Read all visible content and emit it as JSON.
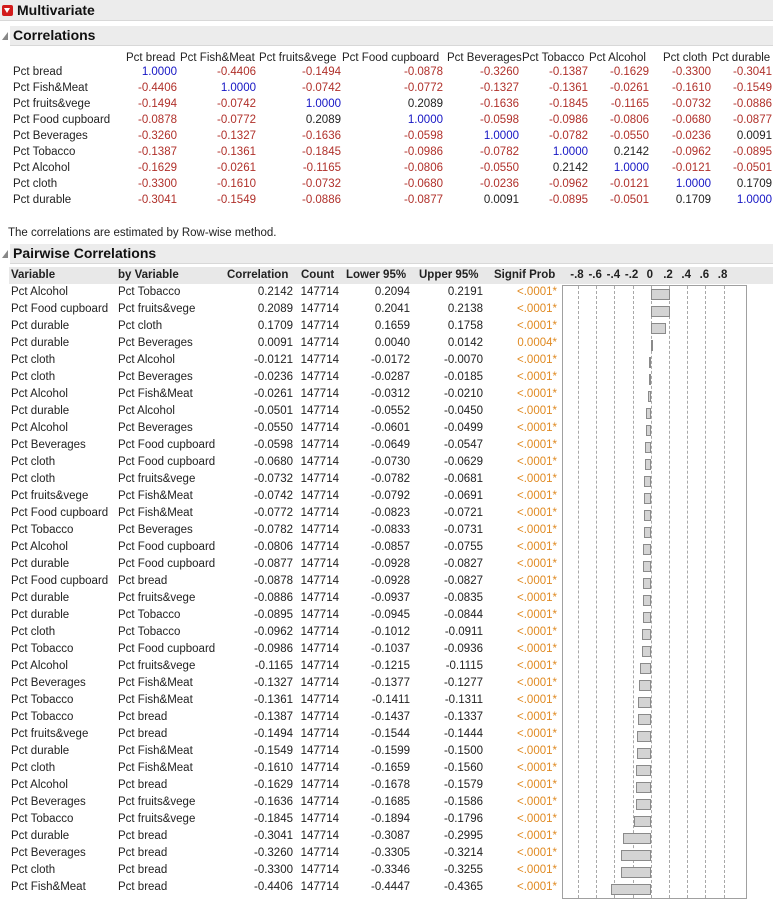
{
  "header": {
    "title": "Multivariate"
  },
  "correlations": {
    "title": "Correlations",
    "variables": [
      "Pct bread",
      "Pct Fish&Meat",
      "Pct fruits&vege",
      "Pct Food cupboard",
      "Pct Beverages",
      "Pct Tobacco",
      "Pct Alcohol",
      "Pct cloth",
      "Pct durable"
    ],
    "matrix": [
      [
        "1.0000",
        "-0.4406",
        "-0.1494",
        "-0.0878",
        "-0.3260",
        "-0.1387",
        "-0.1629",
        "-0.3300",
        "-0.3041"
      ],
      [
        "-0.4406",
        "1.0000",
        "-0.0742",
        "-0.0772",
        "-0.1327",
        "-0.1361",
        "-0.0261",
        "-0.1610",
        "-0.1549"
      ],
      [
        "-0.1494",
        "-0.0742",
        "1.0000",
        "0.2089",
        "-0.1636",
        "-0.1845",
        "-0.1165",
        "-0.0732",
        "-0.0886"
      ],
      [
        "-0.0878",
        "-0.0772",
        "0.2089",
        "1.0000",
        "-0.0598",
        "-0.0986",
        "-0.0806",
        "-0.0680",
        "-0.0877"
      ],
      [
        "-0.3260",
        "-0.1327",
        "-0.1636",
        "-0.0598",
        "1.0000",
        "-0.0782",
        "-0.0550",
        "-0.0236",
        "0.0091"
      ],
      [
        "-0.1387",
        "-0.1361",
        "-0.1845",
        "-0.0986",
        "-0.0782",
        "1.0000",
        "0.2142",
        "-0.0962",
        "-0.0895"
      ],
      [
        "-0.1629",
        "-0.0261",
        "-0.1165",
        "-0.0806",
        "-0.0550",
        "0.2142",
        "1.0000",
        "-0.0121",
        "-0.0501"
      ],
      [
        "-0.3300",
        "-0.1610",
        "-0.0732",
        "-0.0680",
        "-0.0236",
        "-0.0962",
        "-0.0121",
        "1.0000",
        "0.1709"
      ],
      [
        "-0.3041",
        "-0.1549",
        "-0.0886",
        "-0.0877",
        "0.0091",
        "-0.0895",
        "-0.0501",
        "0.1709",
        "1.0000"
      ]
    ],
    "note": "The correlations are estimated by Row-wise method."
  },
  "pairwise": {
    "title": "Pairwise Correlations",
    "columns": [
      "Variable",
      "by Variable",
      "Correlation",
      "Count",
      "Lower 95%",
      "Upper 95%",
      "Signif Prob"
    ],
    "axis_ticks": [
      "-.8",
      "-.6",
      "-.4",
      "-.2",
      "0",
      ".2",
      ".4",
      ".6",
      ".8"
    ],
    "rows": [
      [
        "Pct Alcohol",
        "Pct Tobacco",
        "0.2142",
        "147714",
        "0.2094",
        "0.2191",
        "<.0001*"
      ],
      [
        "Pct Food cupboard",
        "Pct fruits&vege",
        "0.2089",
        "147714",
        "0.2041",
        "0.2138",
        "<.0001*"
      ],
      [
        "Pct durable",
        "Pct cloth",
        "0.1709",
        "147714",
        "0.1659",
        "0.1758",
        "<.0001*"
      ],
      [
        "Pct durable",
        "Pct Beverages",
        "0.0091",
        "147714",
        "0.0040",
        "0.0142",
        "0.0004*"
      ],
      [
        "Pct cloth",
        "Pct Alcohol",
        "-0.0121",
        "147714",
        "-0.0172",
        "-0.0070",
        "<.0001*"
      ],
      [
        "Pct cloth",
        "Pct Beverages",
        "-0.0236",
        "147714",
        "-0.0287",
        "-0.0185",
        "<.0001*"
      ],
      [
        "Pct Alcohol",
        "Pct Fish&Meat",
        "-0.0261",
        "147714",
        "-0.0312",
        "-0.0210",
        "<.0001*"
      ],
      [
        "Pct durable",
        "Pct Alcohol",
        "-0.0501",
        "147714",
        "-0.0552",
        "-0.0450",
        "<.0001*"
      ],
      [
        "Pct Alcohol",
        "Pct Beverages",
        "-0.0550",
        "147714",
        "-0.0601",
        "-0.0499",
        "<.0001*"
      ],
      [
        "Pct Beverages",
        "Pct Food cupboard",
        "-0.0598",
        "147714",
        "-0.0649",
        "-0.0547",
        "<.0001*"
      ],
      [
        "Pct cloth",
        "Pct Food cupboard",
        "-0.0680",
        "147714",
        "-0.0730",
        "-0.0629",
        "<.0001*"
      ],
      [
        "Pct cloth",
        "Pct fruits&vege",
        "-0.0732",
        "147714",
        "-0.0782",
        "-0.0681",
        "<.0001*"
      ],
      [
        "Pct fruits&vege",
        "Pct Fish&Meat",
        "-0.0742",
        "147714",
        "-0.0792",
        "-0.0691",
        "<.0001*"
      ],
      [
        "Pct Food cupboard",
        "Pct Fish&Meat",
        "-0.0772",
        "147714",
        "-0.0823",
        "-0.0721",
        "<.0001*"
      ],
      [
        "Pct Tobacco",
        "Pct Beverages",
        "-0.0782",
        "147714",
        "-0.0833",
        "-0.0731",
        "<.0001*"
      ],
      [
        "Pct Alcohol",
        "Pct Food cupboard",
        "-0.0806",
        "147714",
        "-0.0857",
        "-0.0755",
        "<.0001*"
      ],
      [
        "Pct durable",
        "Pct Food cupboard",
        "-0.0877",
        "147714",
        "-0.0928",
        "-0.0827",
        "<.0001*"
      ],
      [
        "Pct Food cupboard",
        "Pct bread",
        "-0.0878",
        "147714",
        "-0.0928",
        "-0.0827",
        "<.0001*"
      ],
      [
        "Pct durable",
        "Pct fruits&vege",
        "-0.0886",
        "147714",
        "-0.0937",
        "-0.0835",
        "<.0001*"
      ],
      [
        "Pct durable",
        "Pct Tobacco",
        "-0.0895",
        "147714",
        "-0.0945",
        "-0.0844",
        "<.0001*"
      ],
      [
        "Pct cloth",
        "Pct Tobacco",
        "-0.0962",
        "147714",
        "-0.1012",
        "-0.0911",
        "<.0001*"
      ],
      [
        "Pct Tobacco",
        "Pct Food cupboard",
        "-0.0986",
        "147714",
        "-0.1037",
        "-0.0936",
        "<.0001*"
      ],
      [
        "Pct Alcohol",
        "Pct fruits&vege",
        "-0.1165",
        "147714",
        "-0.1215",
        "-0.1115",
        "<.0001*"
      ],
      [
        "Pct Beverages",
        "Pct Fish&Meat",
        "-0.1327",
        "147714",
        "-0.1377",
        "-0.1277",
        "<.0001*"
      ],
      [
        "Pct Tobacco",
        "Pct Fish&Meat",
        "-0.1361",
        "147714",
        "-0.1411",
        "-0.1311",
        "<.0001*"
      ],
      [
        "Pct Tobacco",
        "Pct bread",
        "-0.1387",
        "147714",
        "-0.1437",
        "-0.1337",
        "<.0001*"
      ],
      [
        "Pct fruits&vege",
        "Pct bread",
        "-0.1494",
        "147714",
        "-0.1544",
        "-0.1444",
        "<.0001*"
      ],
      [
        "Pct durable",
        "Pct Fish&Meat",
        "-0.1549",
        "147714",
        "-0.1599",
        "-0.1500",
        "<.0001*"
      ],
      [
        "Pct cloth",
        "Pct Fish&Meat",
        "-0.1610",
        "147714",
        "-0.1659",
        "-0.1560",
        "<.0001*"
      ],
      [
        "Pct Alcohol",
        "Pct bread",
        "-0.1629",
        "147714",
        "-0.1678",
        "-0.1579",
        "<.0001*"
      ],
      [
        "Pct Beverages",
        "Pct fruits&vege",
        "-0.1636",
        "147714",
        "-0.1685",
        "-0.1586",
        "<.0001*"
      ],
      [
        "Pct Tobacco",
        "Pct fruits&vege",
        "-0.1845",
        "147714",
        "-0.1894",
        "-0.1796",
        "<.0001*"
      ],
      [
        "Pct durable",
        "Pct bread",
        "-0.3041",
        "147714",
        "-0.3087",
        "-0.2995",
        "<.0001*"
      ],
      [
        "Pct Beverages",
        "Pct bread",
        "-0.3260",
        "147714",
        "-0.3305",
        "-0.3214",
        "<.0001*"
      ],
      [
        "Pct cloth",
        "Pct bread",
        "-0.3300",
        "147714",
        "-0.3346",
        "-0.3255",
        "<.0001*"
      ],
      [
        "Pct Fish&Meat",
        "Pct bread",
        "-0.4406",
        "147714",
        "-0.4447",
        "-0.4365",
        "<.0001*"
      ]
    ]
  },
  "colors": {
    "negative": "#b0302a",
    "diagonal": "#1515c4",
    "signif": "#e08a22",
    "header_bg": "#ececec"
  }
}
